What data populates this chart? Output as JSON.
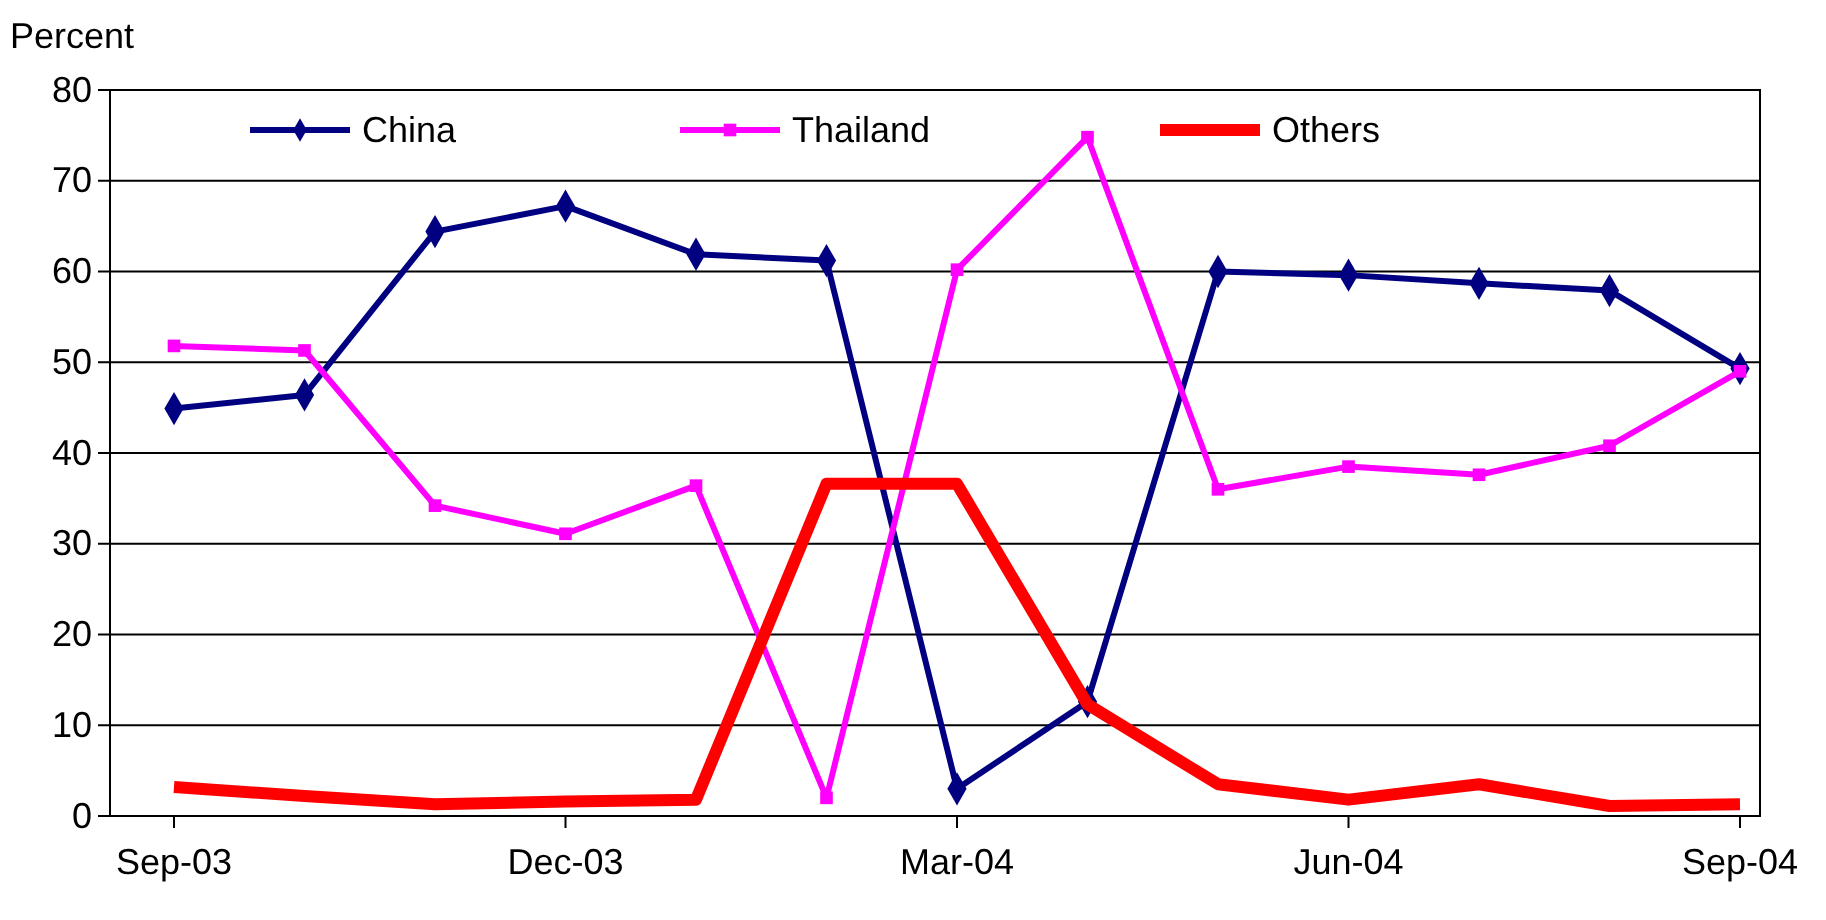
{
  "chart_data": {
    "type": "line",
    "ylabel": "Percent",
    "categories": [
      "Sep-03",
      null,
      null,
      "Dec-03",
      null,
      null,
      "Mar-04",
      null,
      null,
      "Jun-04",
      null,
      null,
      "Sep-04"
    ],
    "ylim": [
      0,
      80
    ],
    "yticks": [
      0,
      10,
      20,
      30,
      40,
      50,
      60,
      70,
      80
    ],
    "grid": "y",
    "legend": "top",
    "line_style": "solid",
    "series": [
      {
        "name": "China",
        "color": "#000080",
        "marker": "diamond",
        "values": [
          44.9,
          46.4,
          64.4,
          67.2,
          61.9,
          61.2,
          3,
          12.6,
          60,
          59.6,
          58.7,
          57.9,
          49.3
        ]
      },
      {
        "name": "Thailand",
        "color": "#ff00ff",
        "marker": "square",
        "values": [
          51.8,
          51.3,
          34.2,
          31.1,
          36.4,
          2,
          60.2,
          74.8,
          36,
          38.5,
          37.6,
          40.8,
          49
        ]
      },
      {
        "name": "Others",
        "color": "#ff0000",
        "marker": "none",
        "values": [
          3.2,
          2.2,
          1.3,
          1.6,
          1.8,
          36.6,
          36.6,
          12.3,
          3.5,
          1.8,
          3.5,
          1.1,
          1.3
        ]
      }
    ]
  }
}
